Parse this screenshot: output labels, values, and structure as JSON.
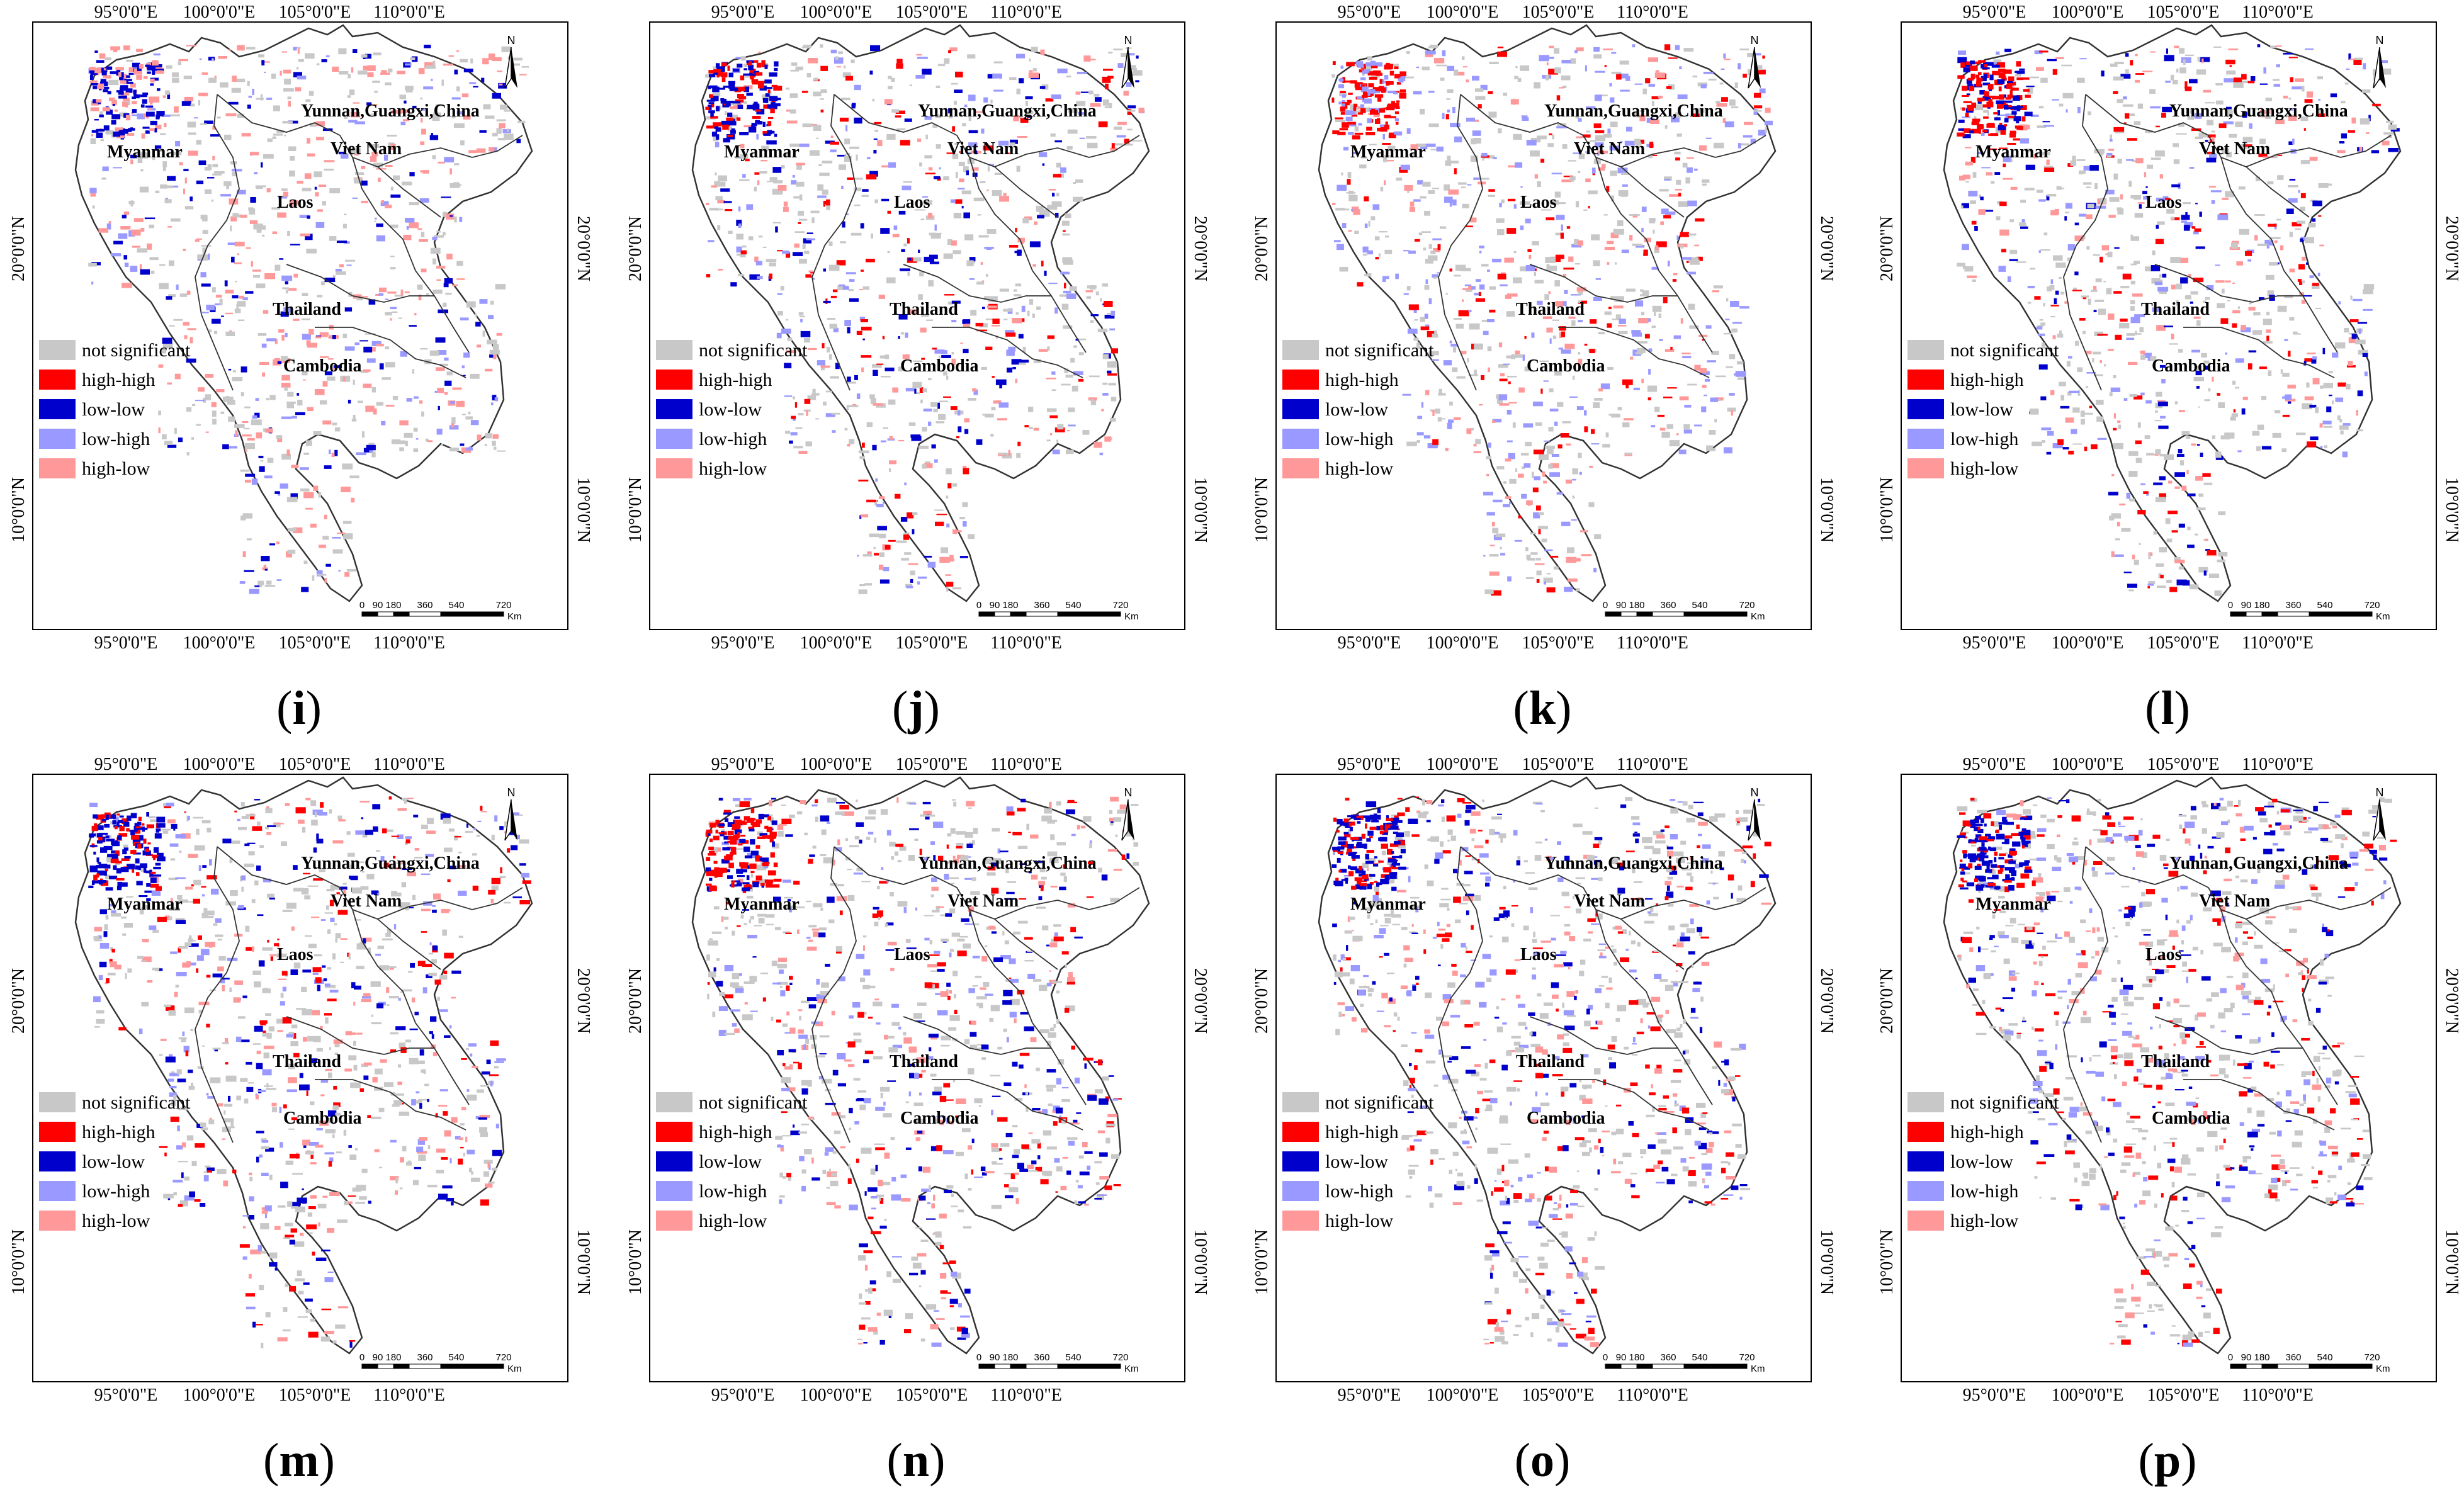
{
  "figure": {
    "axis_top_labels": [
      "95°0'0\"E",
      "100°0'0\"E",
      "105°0'0\"E",
      "110°0'0\"E"
    ],
    "axis_bottom_labels": [
      "95°0'0\"E",
      "100°0'0\"E",
      "105°0'0\"E",
      "110°0'0\"E"
    ],
    "axis_left_labels": [
      "20°0'0\"N",
      "10°0'0\"N"
    ],
    "axis_right_labels": [
      "20°0'0\"N",
      "10°0'0\"N"
    ],
    "countries": [
      "Yunnan,Guangxi,China",
      "Myanmar",
      "Viet Nam",
      "Laos",
      "Thailand",
      "Cambodia"
    ],
    "legend": [
      {
        "label": "not significant",
        "color": "#c8c8c8"
      },
      {
        "label": "high-high",
        "color": "#ff0000"
      },
      {
        "label": "low-low",
        "color": "#0000cc"
      },
      {
        "label": "low-high",
        "color": "#9999ff"
      },
      {
        "label": "high-low",
        "color": "#ff9999"
      }
    ],
    "scale_bar": {
      "ticks": [
        "0",
        "90",
        "180",
        "360",
        "540",
        "720"
      ],
      "unit": "Km"
    },
    "north_label": "N",
    "panels": [
      {
        "id": "i",
        "label": "i",
        "dominant": [
          "#0000cc",
          "#ff9999"
        ]
      },
      {
        "id": "j",
        "label": "j",
        "dominant": [
          "#0000cc",
          "#ff0000"
        ]
      },
      {
        "id": "k",
        "label": "k",
        "dominant": [
          "#ff0000",
          "#9999ff"
        ]
      },
      {
        "id": "l",
        "label": "l",
        "dominant": [
          "#ff0000",
          "#0000cc"
        ]
      },
      {
        "id": "m",
        "label": "m",
        "dominant": [
          "#0000cc",
          "#ff0000"
        ]
      },
      {
        "id": "n",
        "label": "n",
        "dominant": [
          "#ff0000",
          "#0000cc"
        ]
      },
      {
        "id": "o",
        "label": "o",
        "dominant": [
          "#0000cc",
          "#ff0000"
        ]
      },
      {
        "id": "p",
        "label": "p",
        "dominant": [
          "#0000cc",
          "#ff0000"
        ]
      }
    ]
  }
}
